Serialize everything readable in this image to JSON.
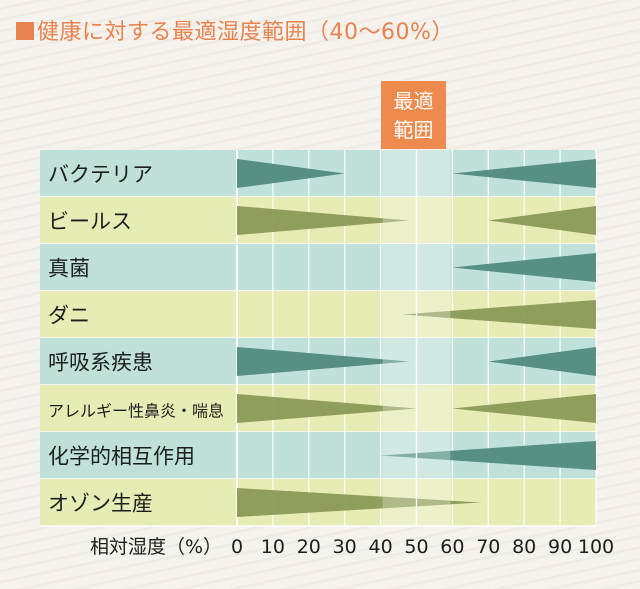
{
  "title": "健康に対する最適湿度範囲（40〜60%）",
  "optimal_label_line1": "最適",
  "optimal_label_line2": "範囲",
  "x_axis_label": "相対湿度（%）",
  "colors": {
    "title": "#e8834f",
    "optimal_box": "#ef8a4e",
    "row_teal": "#bfe1d9",
    "row_yellow": "#e7ecb4",
    "wedge_teal": "#4f8b7d",
    "wedge_olive": "#8b9a58"
  },
  "chart_data": {
    "type": "range-wedge",
    "title": "健康に対する最適湿度範囲（40〜60%）",
    "xlabel": "相対湿度（%）",
    "xlim": [
      0,
      100
    ],
    "x_ticks": [
      0,
      10,
      20,
      30,
      40,
      50,
      60,
      70,
      80,
      90,
      100
    ],
    "optimal_range": [
      40,
      60
    ],
    "grid": true,
    "rows": [
      {
        "name": "バクテリア",
        "low_end": 30,
        "high_start": 60
      },
      {
        "name": "ビールス",
        "low_end": 48,
        "high_start": 70
      },
      {
        "name": "真菌",
        "low_end": null,
        "high_start": 60
      },
      {
        "name": "ダニ",
        "low_end": null,
        "high_start": 46
      },
      {
        "name": "呼吸系疾患",
        "low_end": 48,
        "high_start": 70
      },
      {
        "name": "アレルギー性鼻炎・喘息",
        "low_end": 50,
        "high_start": 60
      },
      {
        "name": "化学的相互作用",
        "low_end": null,
        "high_start": 40
      },
      {
        "name": "オゾン生産",
        "low_end": 68,
        "high_start": null
      }
    ]
  }
}
